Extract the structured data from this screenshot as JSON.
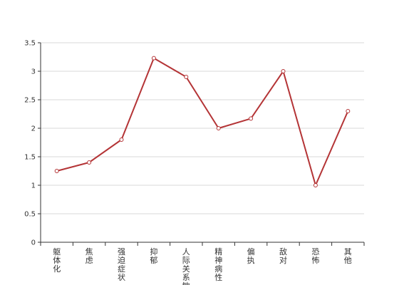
{
  "chart_data": {
    "type": "line",
    "categories": [
      "躯体化",
      "焦虑",
      "强迫症状",
      "抑郁",
      "人际关系敏感",
      "精神病性",
      "偏执",
      "敌对",
      "恐怖",
      "其他"
    ],
    "series": [
      {
        "values": [
          1.25,
          1.4,
          1.8,
          3.23,
          2.9,
          2.0,
          2.17,
          3.0,
          1.0,
          2.3
        ]
      }
    ],
    "ylim": [
      0,
      3.5
    ],
    "yticks": [
      0,
      0.5,
      1,
      1.5,
      2,
      2.5,
      3,
      3.5
    ],
    "grid": true,
    "line_color": "#b43436"
  }
}
